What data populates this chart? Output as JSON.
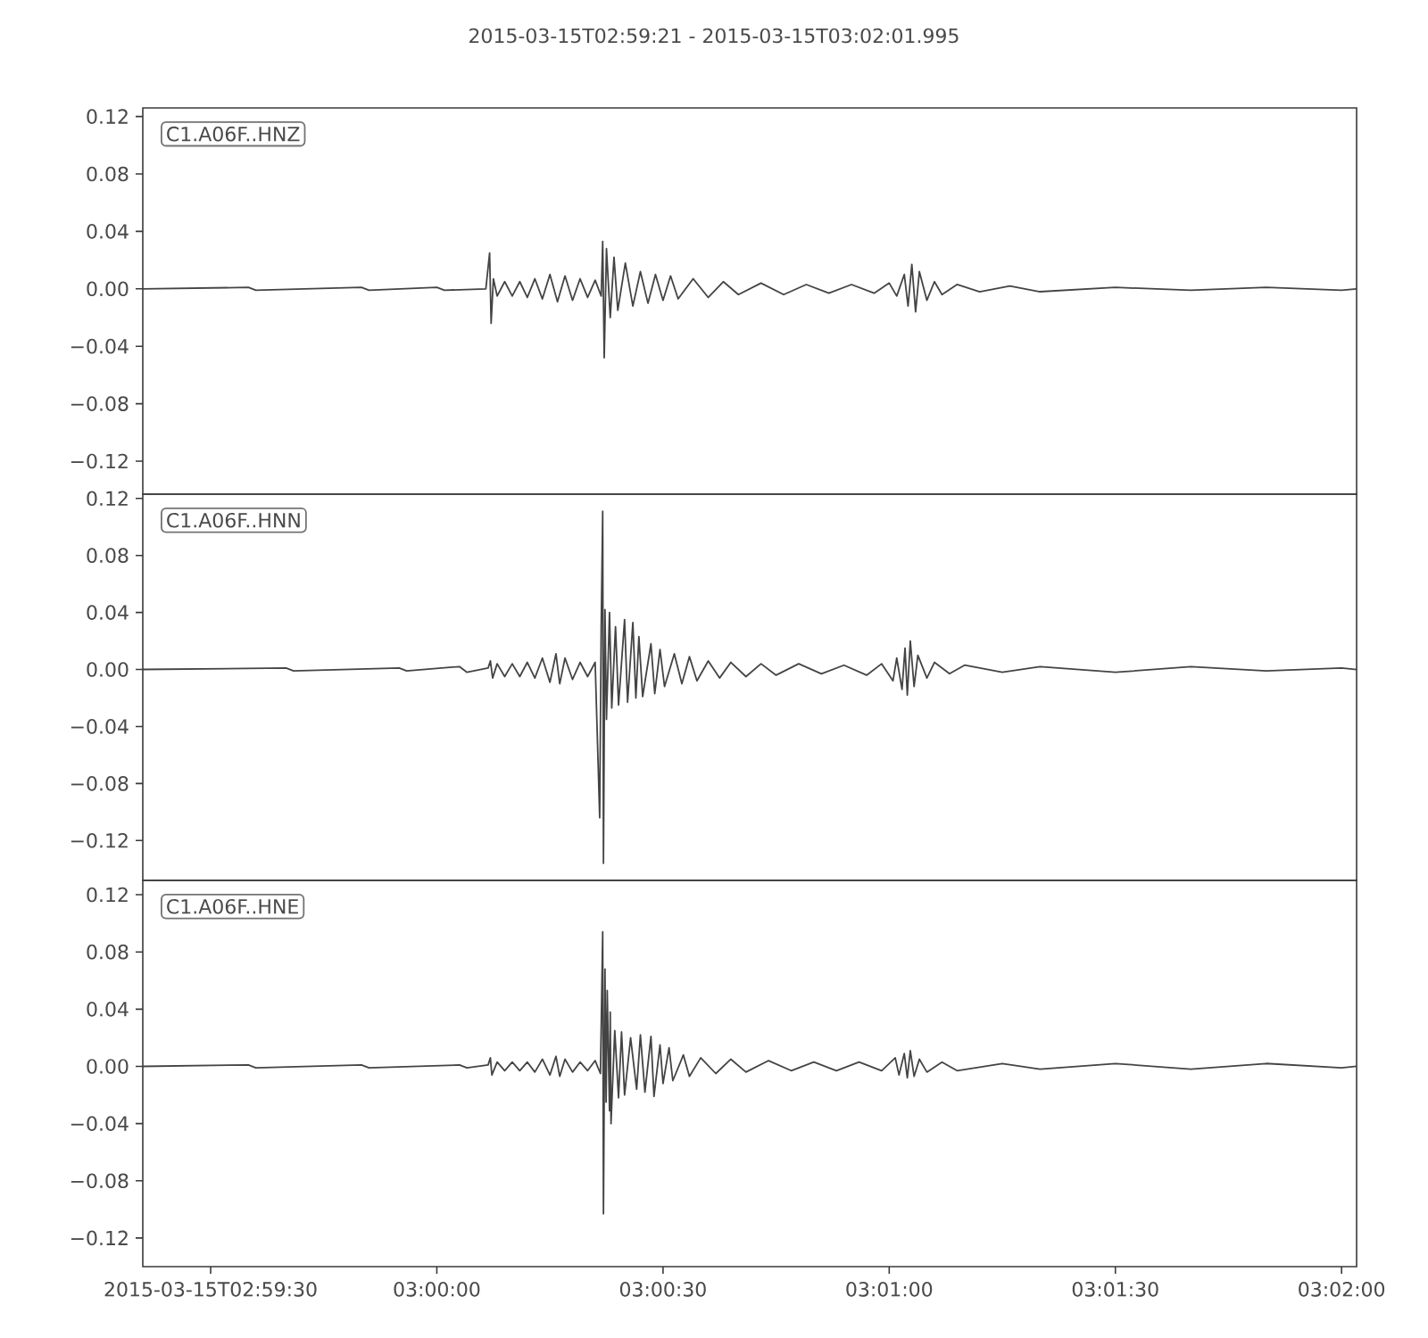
{
  "chart_data": [
    {
      "type": "line",
      "title": "2015-03-15T02:59:21  -  2015-03-15T03:02:01.995",
      "annotations": [
        "C1.A06F..HNZ"
      ],
      "color": "#444444",
      "tick_labels": "y",
      "xlim": [
        "2015-03-15T02:59:21",
        "2015-03-15T03:02:01.995"
      ],
      "ylim": [
        -0.143,
        0.126
      ],
      "yticks": [
        {
          "value": -0.12,
          "label": "−0.12"
        },
        {
          "value": -0.08,
          "label": "−0.08"
        },
        {
          "value": -0.04,
          "label": "−0.04"
        },
        {
          "value": 0,
          "label": "0.00"
        },
        0.04,
        0.08,
        0.12
      ],
      "x": [
        "2015-03-15T02:59:21",
        "2015-03-15T02:59:35",
        "2015-03-15T02:59:36",
        "2015-03-15T02:59:50",
        "2015-03-15T02:59:51",
        "2015-03-15T03:00:00",
        "2015-03-15T03:00:01",
        "2015-03-15T03:00:06.5",
        "2015-03-15T03:00:07.0",
        "2015-03-15T03:00:07.2",
        "2015-03-15T03:00:07.5",
        "2015-03-15T03:00:08",
        "2015-03-15T03:00:09",
        "2015-03-15T03:00:10",
        "2015-03-15T03:00:11",
        "2015-03-15T03:00:12",
        "2015-03-15T03:00:13",
        "2015-03-15T03:00:14",
        "2015-03-15T03:00:15",
        "2015-03-15T03:00:16",
        "2015-03-15T03:00:17",
        "2015-03-15T03:00:18",
        "2015-03-15T03:00:19",
        "2015-03-15T03:00:20",
        "2015-03-15T03:00:21",
        "2015-03-15T03:00:21.8",
        "2015-03-15T03:00:22.0",
        "2015-03-15T03:00:22.2",
        "2015-03-15T03:00:22.5",
        "2015-03-15T03:00:23",
        "2015-03-15T03:00:23.5",
        "2015-03-15T03:00:24",
        "2015-03-15T03:00:25",
        "2015-03-15T03:00:26",
        "2015-03-15T03:00:27",
        "2015-03-15T03:00:28",
        "2015-03-15T03:00:29",
        "2015-03-15T03:00:30",
        "2015-03-15T03:00:31",
        "2015-03-15T03:00:32",
        "2015-03-15T03:00:34",
        "2015-03-15T03:00:36",
        "2015-03-15T03:00:38",
        "2015-03-15T03:00:40",
        "2015-03-15T03:00:43",
        "2015-03-15T03:00:46",
        "2015-03-15T03:00:49",
        "2015-03-15T03:00:52",
        "2015-03-15T03:00:55",
        "2015-03-15T03:00:58",
        "2015-03-15T03:01:00",
        "2015-03-15T03:01:01",
        "2015-03-15T03:01:02",
        "2015-03-15T03:01:02.5",
        "2015-03-15T03:01:03",
        "2015-03-15T03:01:03.5",
        "2015-03-15T03:01:04",
        "2015-03-15T03:01:05",
        "2015-03-15T03:01:06",
        "2015-03-15T03:01:07",
        "2015-03-15T03:01:09",
        "2015-03-15T03:01:12",
        "2015-03-15T03:01:16",
        "2015-03-15T03:01:20",
        "2015-03-15T03:01:30",
        "2015-03-15T03:01:40",
        "2015-03-15T03:01:50",
        "2015-03-15T03:02:00",
        "2015-03-15T03:02:01.995"
      ],
      "values": [
        0.0,
        0.001,
        -0.001,
        0.001,
        -0.001,
        0.001,
        -0.001,
        0.0,
        0.025,
        -0.024,
        0.007,
        -0.005,
        0.005,
        -0.005,
        0.005,
        -0.006,
        0.007,
        -0.007,
        0.01,
        -0.009,
        0.009,
        -0.008,
        0.007,
        -0.006,
        0.006,
        -0.005,
        0.033,
        -0.048,
        0.028,
        -0.02,
        0.022,
        -0.015,
        0.018,
        -0.012,
        0.012,
        -0.01,
        0.01,
        -0.008,
        0.009,
        -0.007,
        0.007,
        -0.006,
        0.005,
        -0.004,
        0.004,
        -0.004,
        0.003,
        -0.003,
        0.003,
        -0.003,
        0.004,
        -0.005,
        0.01,
        -0.012,
        0.017,
        -0.016,
        0.012,
        -0.008,
        0.005,
        -0.004,
        0.003,
        -0.002,
        0.002,
        -0.002,
        0.001,
        -0.001,
        0.001,
        -0.001,
        0.0
      ]
    },
    {
      "type": "line",
      "annotations": [
        "C1.A06F..HNN"
      ],
      "color": "#444444",
      "tick_labels": "y",
      "xlim": [
        "2015-03-15T02:59:21",
        "2015-03-15T03:02:01.995"
      ],
      "ylim": [
        -0.148,
        0.123
      ],
      "yticks": [
        {
          "value": -0.12,
          "label": "−0.12"
        },
        {
          "value": -0.08,
          "label": "−0.08"
        },
        {
          "value": -0.04,
          "label": "−0.04"
        },
        {
          "value": 0,
          "label": "0.00"
        },
        0.04,
        0.08,
        0.12
      ],
      "x": [
        "2015-03-15T02:59:21",
        "2015-03-15T02:59:40",
        "2015-03-15T02:59:41",
        "2015-03-15T02:59:55",
        "2015-03-15T02:59:56",
        "2015-03-15T03:00:03",
        "2015-03-15T03:00:04",
        "2015-03-15T03:00:06.8",
        "2015-03-15T03:00:07.1",
        "2015-03-15T03:00:07.4",
        "2015-03-15T03:00:08",
        "2015-03-15T03:00:09",
        "2015-03-15T03:00:10",
        "2015-03-15T03:00:11",
        "2015-03-15T03:00:12",
        "2015-03-15T03:00:13",
        "2015-03-15T03:00:14",
        "2015-03-15T03:00:15",
        "2015-03-15T03:00:15.8",
        "2015-03-15T03:00:16.3",
        "2015-03-15T03:00:17",
        "2015-03-15T03:00:18",
        "2015-03-15T03:00:19",
        "2015-03-15T03:00:20",
        "2015-03-15T03:00:21",
        "2015-03-15T03:00:21.6",
        "2015-03-15T03:00:21.8",
        "2015-03-15T03:00:22.0",
        "2015-03-15T03:00:22.1",
        "2015-03-15T03:00:22.3",
        "2015-03-15T03:00:22.5",
        "2015-03-15T03:00:22.9",
        "2015-03-15T03:00:23.2",
        "2015-03-15T03:00:23.7",
        "2015-03-15T03:00:24.1",
        "2015-03-15T03:00:24.9",
        "2015-03-15T03:00:25.3",
        "2015-03-15T03:00:26.0",
        "2015-03-15T03:00:26.4",
        "2015-03-15T03:00:26.8",
        "2015-03-15T03:00:27.3",
        "2015-03-15T03:00:28.4",
        "2015-03-15T03:00:28.9",
        "2015-03-15T03:00:29.6",
        "2015-03-15T03:00:30.2",
        "2015-03-15T03:00:31.5",
        "2015-03-15T03:00:32.5",
        "2015-03-15T03:00:33.5",
        "2015-03-15T03:00:34.5",
        "2015-03-15T03:00:36",
        "2015-03-15T03:00:37.5",
        "2015-03-15T03:00:39",
        "2015-03-15T03:00:41",
        "2015-03-15T03:00:43",
        "2015-03-15T03:00:45",
        "2015-03-15T03:00:48",
        "2015-03-15T03:00:51",
        "2015-03-15T03:00:54",
        "2015-03-15T03:00:57",
        "2015-03-15T03:00:59",
        "2015-03-15T03:01:00.5",
        "2015-03-15T03:01:01",
        "2015-03-15T03:01:01.7",
        "2015-03-15T03:01:02.1",
        "2015-03-15T03:01:02.4",
        "2015-03-15T03:01:02.8",
        "2015-03-15T03:01:03.3",
        "2015-03-15T03:01:03.8",
        "2015-03-15T03:01:05",
        "2015-03-15T03:01:06",
        "2015-03-15T03:01:08",
        "2015-03-15T03:01:10",
        "2015-03-15T03:01:15",
        "2015-03-15T03:01:20",
        "2015-03-15T03:01:30",
        "2015-03-15T03:01:40",
        "2015-03-15T03:01:50",
        "2015-03-15T03:02:00",
        "2015-03-15T03:02:01.995"
      ],
      "values": [
        0.0,
        0.001,
        -0.001,
        0.001,
        -0.001,
        0.002,
        -0.002,
        0.001,
        0.006,
        -0.006,
        0.004,
        -0.005,
        0.004,
        -0.005,
        0.005,
        -0.006,
        0.008,
        -0.009,
        0.011,
        -0.01,
        0.008,
        -0.007,
        0.005,
        -0.005,
        0.005,
        -0.104,
        0.03,
        0.111,
        -0.136,
        0.042,
        -0.035,
        0.04,
        -0.027,
        0.03,
        -0.025,
        0.035,
        -0.023,
        0.033,
        -0.02,
        0.023,
        -0.019,
        0.018,
        -0.017,
        0.014,
        -0.012,
        0.011,
        -0.01,
        0.009,
        -0.008,
        0.006,
        -0.006,
        0.005,
        -0.005,
        0.004,
        -0.004,
        0.004,
        -0.003,
        0.003,
        -0.004,
        0.004,
        -0.008,
        0.008,
        -0.014,
        0.015,
        -0.018,
        0.02,
        -0.012,
        0.01,
        -0.006,
        0.005,
        -0.003,
        0.003,
        -0.002,
        0.002,
        -0.002,
        0.002,
        -0.001,
        0.001,
        0.0
      ]
    },
    {
      "type": "line",
      "annotations": [
        "C1.A06F..HNE"
      ],
      "color": "#444444",
      "xlim": [
        "2015-03-15T02:59:21",
        "2015-03-15T03:02:01.995"
      ],
      "ylim": [
        -0.14,
        0.13
      ],
      "xticks": [
        {
          "value": "2015-03-15T02:59:30",
          "label": "2015-03-15T02:59:30"
        },
        {
          "value": "2015-03-15T03:00:00",
          "label": "03:00:00"
        },
        {
          "value": "2015-03-15T03:00:30",
          "label": "03:00:30"
        },
        {
          "value": "2015-03-15T03:01:00",
          "label": "03:01:00"
        },
        {
          "value": "2015-03-15T03:01:30",
          "label": "03:01:30"
        },
        {
          "value": "2015-03-15T03:02:00",
          "label": "03:02:00"
        }
      ],
      "yticks": [
        {
          "value": -0.12,
          "label": "−0.12"
        },
        {
          "value": -0.08,
          "label": "−0.08"
        },
        {
          "value": -0.04,
          "label": "−0.04"
        },
        {
          "value": 0,
          "label": "0.00"
        },
        0.04,
        0.08,
        0.12
      ],
      "x": [
        "2015-03-15T02:59:21",
        "2015-03-15T02:59:35",
        "2015-03-15T02:59:36",
        "2015-03-15T02:59:50",
        "2015-03-15T02:59:51",
        "2015-03-15T03:00:03",
        "2015-03-15T03:00:04",
        "2015-03-15T03:00:06.8",
        "2015-03-15T03:00:07.1",
        "2015-03-15T03:00:07.3",
        "2015-03-15T03:00:08",
        "2015-03-15T03:00:09",
        "2015-03-15T03:00:10",
        "2015-03-15T03:00:11",
        "2015-03-15T03:00:12",
        "2015-03-15T03:00:13",
        "2015-03-15T03:00:14",
        "2015-03-15T03:00:15",
        "2015-03-15T03:00:15.8",
        "2015-03-15T03:00:16.3",
        "2015-03-15T03:00:17",
        "2015-03-15T03:00:18",
        "2015-03-15T03:00:19",
        "2015-03-15T03:00:20",
        "2015-03-15T03:00:21",
        "2015-03-15T03:00:21.7",
        "2015-03-15T03:00:22.0",
        "2015-03-15T03:00:22.1",
        "2015-03-15T03:00:22.3",
        "2015-03-15T03:00:22.45",
        "2015-03-15T03:00:22.6",
        "2015-03-15T03:00:22.9",
        "2015-03-15T03:00:23.0",
        "2015-03-15T03:00:23.1",
        "2015-03-15T03:00:23.6",
        "2015-03-15T03:00:24.1",
        "2015-03-15T03:00:24.5",
        "2015-03-15T03:00:24.9",
        "2015-03-15T03:00:25.7",
        "2015-03-15T03:00:26.5",
        "2015-03-15T03:00:27.0",
        "2015-03-15T03:00:27.6",
        "2015-03-15T03:00:28.4",
        "2015-03-15T03:00:28.8",
        "2015-03-15T03:00:29.6",
        "2015-03-15T03:00:30.0",
        "2015-03-15T03:00:30.8",
        "2015-03-15T03:00:31.3",
        "2015-03-15T03:00:32.7",
        "2015-03-15T03:00:33.5",
        "2015-03-15T03:00:35",
        "2015-03-15T03:00:37",
        "2015-03-15T03:00:39",
        "2015-03-15T03:00:41",
        "2015-03-15T03:00:44",
        "2015-03-15T03:00:47",
        "2015-03-15T03:00:50",
        "2015-03-15T03:00:53",
        "2015-03-15T03:00:56",
        "2015-03-15T03:00:59",
        "2015-03-15T03:01:00.8",
        "2015-03-15T03:01:01.3",
        "2015-03-15T03:01:02.0",
        "2015-03-15T03:01:02.4",
        "2015-03-15T03:01:02.8",
        "2015-03-15T03:01:03.3",
        "2015-03-15T03:01:04",
        "2015-03-15T03:01:05",
        "2015-03-15T03:01:07",
        "2015-03-15T03:01:09",
        "2015-03-15T03:01:15",
        "2015-03-15T03:01:20",
        "2015-03-15T03:01:30",
        "2015-03-15T03:01:40",
        "2015-03-15T03:01:50",
        "2015-03-15T03:02:00",
        "2015-03-15T03:02:01.995"
      ],
      "values": [
        0.0,
        0.001,
        -0.001,
        0.001,
        -0.001,
        0.001,
        -0.001,
        0.001,
        0.006,
        -0.006,
        0.003,
        -0.003,
        0.003,
        -0.003,
        0.003,
        -0.004,
        0.005,
        -0.006,
        0.007,
        -0.007,
        0.005,
        -0.004,
        0.003,
        -0.003,
        0.004,
        -0.005,
        0.094,
        -0.103,
        0.068,
        -0.025,
        0.053,
        -0.031,
        0.038,
        -0.04,
        0.025,
        -0.022,
        0.024,
        -0.02,
        0.02,
        -0.016,
        0.022,
        -0.018,
        0.021,
        -0.021,
        0.015,
        -0.012,
        0.013,
        -0.01,
        0.008,
        -0.007,
        0.006,
        -0.005,
        0.005,
        -0.004,
        0.004,
        -0.003,
        0.003,
        -0.003,
        0.003,
        -0.003,
        0.006,
        -0.006,
        0.009,
        -0.008,
        0.011,
        -0.007,
        0.005,
        -0.004,
        0.003,
        -0.003,
        0.002,
        -0.002,
        0.002,
        -0.002,
        0.002,
        -0.001,
        0.0
      ]
    }
  ]
}
